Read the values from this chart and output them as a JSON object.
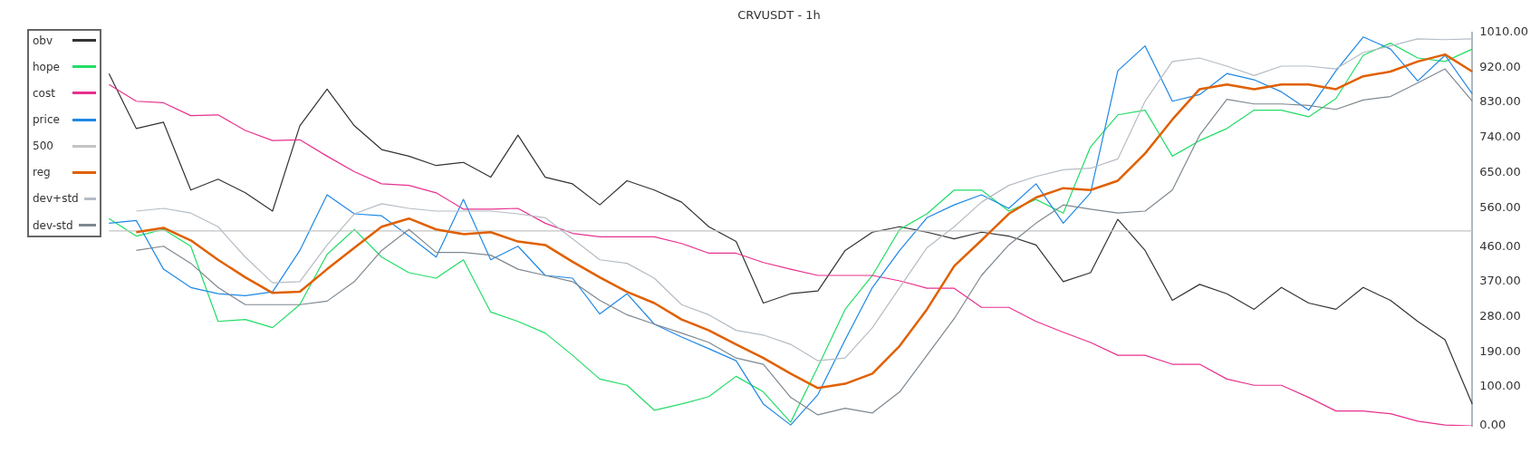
{
  "chart_data": {
    "type": "line",
    "title": "CRVUSDT - 1h",
    "categories": [
      null,
      null,
      null,
      null,
      null,
      null,
      null,
      null,
      null,
      null,
      null,
      null,
      null,
      null,
      null,
      null,
      null,
      null,
      null,
      null,
      null,
      null,
      null,
      null,
      null,
      null,
      null,
      null,
      null,
      null,
      null,
      null,
      null,
      null,
      null,
      null,
      null,
      null,
      null,
      null,
      null,
      null,
      null,
      null,
      null,
      null,
      null,
      null,
      null,
      null,
      null,
      null,
      null,
      null
    ],
    "series": [
      {
        "name": "obv",
        "color": "#333333",
        "values": [
          null,
          null,
          null,
          904,
          763,
          779,
          605,
          633,
          598,
          551,
          770,
          864,
          770,
          709,
          692,
          668,
          676,
          638,
          746,
          638,
          621,
          567,
          629,
          605,
          574,
          511,
          473,
          315,
          339,
          346,
          450,
          497,
          511,
          497,
          480,
          497,
          487,
          464,
          370,
          393,
          530,
          450,
          322,
          363,
          339,
          299,
          355,
          315,
          299,
          355,
          322,
          268,
          221,
          56
        ]
      },
      {
        "name": "hope",
        "color": "#22dd66",
        "values": [
          null,
          null,
          null,
          532,
          487,
          504,
          461,
          268,
          273,
          252,
          311,
          440,
          504,
          433,
          393,
          379,
          426,
          292,
          268,
          238,
          181,
          120,
          104,
          40,
          56,
          75,
          127,
          87,
          9,
          151,
          299,
          386,
          504,
          544,
          605,
          605,
          551,
          581,
          546,
          716,
          798,
          810,
          692,
          732,
          763,
          810,
          810,
          793,
          840,
          951,
          982,
          944,
          935,
          967
        ]
      },
      {
        "name": "cost",
        "color": "#e8308e",
        "values": [
          null,
          null,
          null,
          876,
          833,
          829,
          796,
          798,
          758,
          732,
          734,
          692,
          652,
          621,
          617,
          598,
          556,
          556,
          558,
          520,
          494,
          485,
          485,
          485,
          468,
          443,
          443,
          419,
          402,
          386,
          386,
          386,
          372,
          353,
          353,
          304,
          304,
          268,
          240,
          214,
          181,
          181,
          158,
          158,
          120,
          104,
          104,
          73,
          38,
          38,
          31,
          12,
          2,
          0
        ]
      },
      {
        "name": "price",
        "color": "#1e88e5",
        "values": [
          null,
          null,
          null,
          520,
          527,
          402,
          355,
          339,
          334,
          344,
          450,
          593,
          544,
          539,
          487,
          433,
          581,
          426,
          461,
          386,
          379,
          287,
          339,
          261,
          228,
          198,
          167,
          56,
          2,
          80,
          221,
          355,
          450,
          534,
          567,
          593,
          558,
          621,
          520,
          598,
          911,
          975,
          833,
          850,
          904,
          888,
          857,
          810,
          911,
          998,
          967,
          885,
          951,
          852
        ]
      },
      {
        "name": "500",
        "color": "#c4c4c4",
        "values": [
          null,
          null,
          null,
          500,
          500,
          500,
          500,
          500,
          500,
          500,
          500,
          500,
          500,
          500,
          500,
          500,
          500,
          500,
          500,
          500,
          500,
          500,
          500,
          500,
          500,
          500,
          500,
          500,
          500,
          500,
          500,
          500,
          500,
          500,
          500,
          500,
          500,
          500,
          500,
          500,
          500,
          500,
          500,
          500,
          500,
          500,
          500,
          500,
          500,
          500,
          500,
          500,
          500,
          500
        ]
      },
      {
        "name": "reg",
        "color": "#e06000",
        "values": [
          null,
          null,
          null,
          null,
          497,
          508,
          476,
          426,
          381,
          341,
          344,
          402,
          457,
          511,
          532,
          504,
          492,
          497,
          473,
          464,
          421,
          381,
          344,
          315,
          273,
          245,
          209,
          174,
          134,
          97,
          108,
          134,
          205,
          299,
          410,
          476,
          544,
          586,
          610,
          605,
          629,
          699,
          786,
          864,
          876,
          864,
          876,
          876,
          864,
          897,
          909,
          935,
          953,
          909
        ]
      },
      {
        "name": "dev+std",
        "color": "#b4bcc4",
        "values": [
          null,
          null,
          null,
          null,
          551,
          558,
          546,
          511,
          433,
          367,
          370,
          464,
          544,
          570,
          558,
          551,
          551,
          551,
          544,
          534,
          480,
          426,
          417,
          379,
          311,
          285,
          245,
          233,
          209,
          167,
          174,
          252,
          355,
          457,
          511,
          574,
          617,
          640,
          657,
          661,
          685,
          833,
          935,
          944,
          923,
          899,
          923,
          923,
          916,
          958,
          975,
          993,
          991,
          993
        ]
      },
      {
        "name": "dev-std",
        "color": "#7e8890",
        "values": [
          null,
          null,
          null,
          null,
          450,
          461,
          417,
          355,
          311,
          311,
          311,
          320,
          370,
          450,
          504,
          445,
          445,
          438,
          402,
          386,
          370,
          322,
          285,
          261,
          238,
          214,
          174,
          158,
          73,
          28,
          45,
          33,
          87,
          181,
          275,
          386,
          464,
          520,
          567,
          556,
          546,
          551,
          605,
          746,
          838,
          826,
          826,
          822,
          812,
          836,
          845,
          880,
          916,
          833
        ]
      }
    ],
    "ylim": [
      0,
      1010
    ],
    "yticks": [
      {
        "value": 0,
        "label": "0.00"
      },
      {
        "value": 100,
        "label": "100.00"
      },
      {
        "value": 190,
        "label": "190.00"
      },
      {
        "value": 280,
        "label": "280.00"
      },
      {
        "value": 370,
        "label": "370.00"
      },
      {
        "value": 460,
        "label": "460.00"
      },
      {
        "value": 560,
        "label": "560.00"
      },
      {
        "value": 650,
        "label": "650.00"
      },
      {
        "value": 740,
        "label": "740.00"
      },
      {
        "value": 830,
        "label": "830.00"
      },
      {
        "value": 920,
        "label": "920.00"
      },
      {
        "value": 1010,
        "label": "1010.00"
      }
    ],
    "tick_labels": "y",
    "legend": "top left",
    "marker": "none",
    "line_style": "solid"
  }
}
